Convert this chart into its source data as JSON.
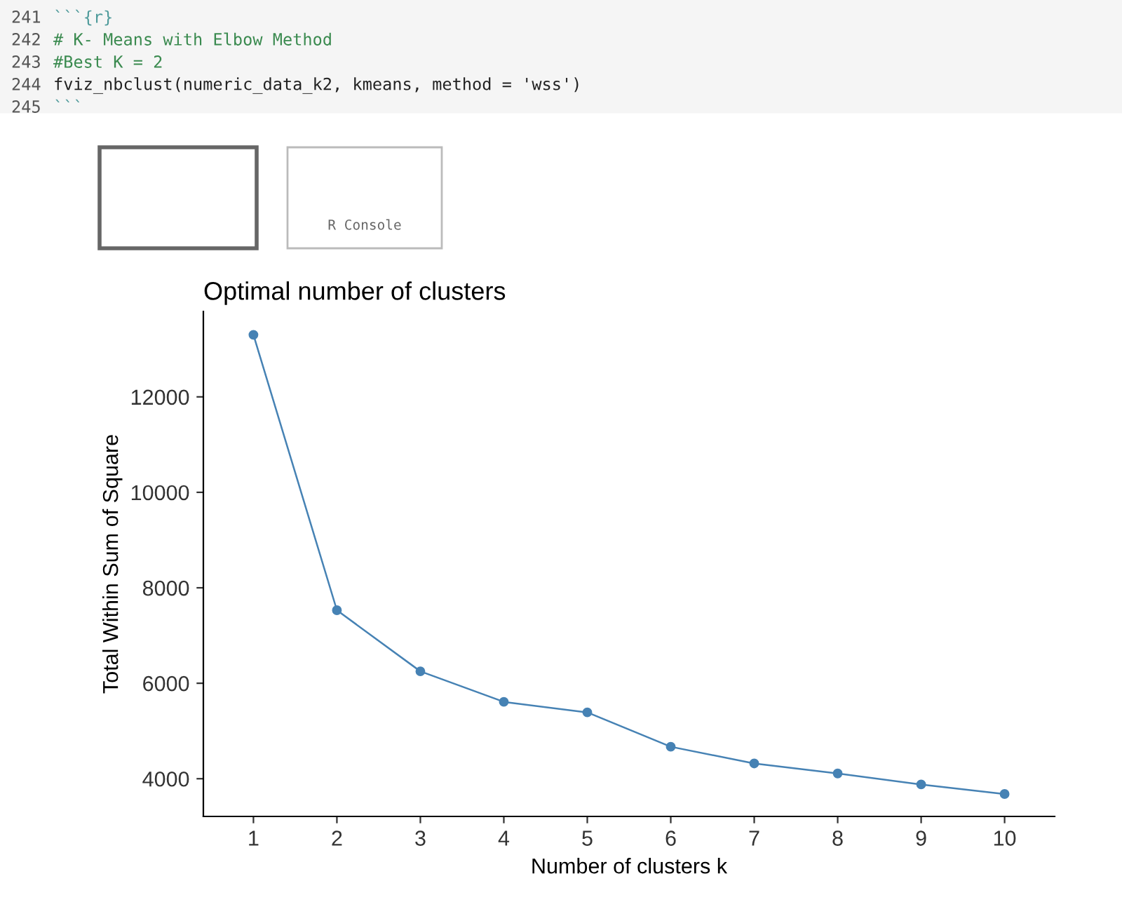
{
  "chart_data": {
    "type": "line",
    "title": "Optimal number of clusters",
    "xlabel": "Number of clusters k",
    "ylabel": "Total Within Sum of Square",
    "x": [
      1,
      2,
      3,
      4,
      5,
      6,
      7,
      8,
      9,
      10
    ],
    "series": [
      {
        "color": "#4682b4",
        "values": [
          13300,
          7530,
          6250,
          5610,
          5390,
          4670,
          4320,
          4110,
          3880,
          3680
        ]
      }
    ],
    "xlim": [
      0.4,
      10.6
    ],
    "xticks": [
      1,
      2,
      3,
      4,
      5,
      6,
      7,
      8,
      9,
      10
    ],
    "ylim": [
      3210,
      13790
    ],
    "yticks": [
      4000,
      6000,
      8000,
      10000,
      12000
    ],
    "grid": false,
    "marker": "circle",
    "line_style": "solid",
    "annotations": [
      "```{r}",
      "# K- Means with Elbow Method",
      "#Best K = 2",
      "fviz_nbclust(numeric_data_k2, kmeans, method = 'wss')",
      "```",
      "241",
      "242",
      "243",
      "244",
      "245",
      "R Console"
    ]
  }
}
